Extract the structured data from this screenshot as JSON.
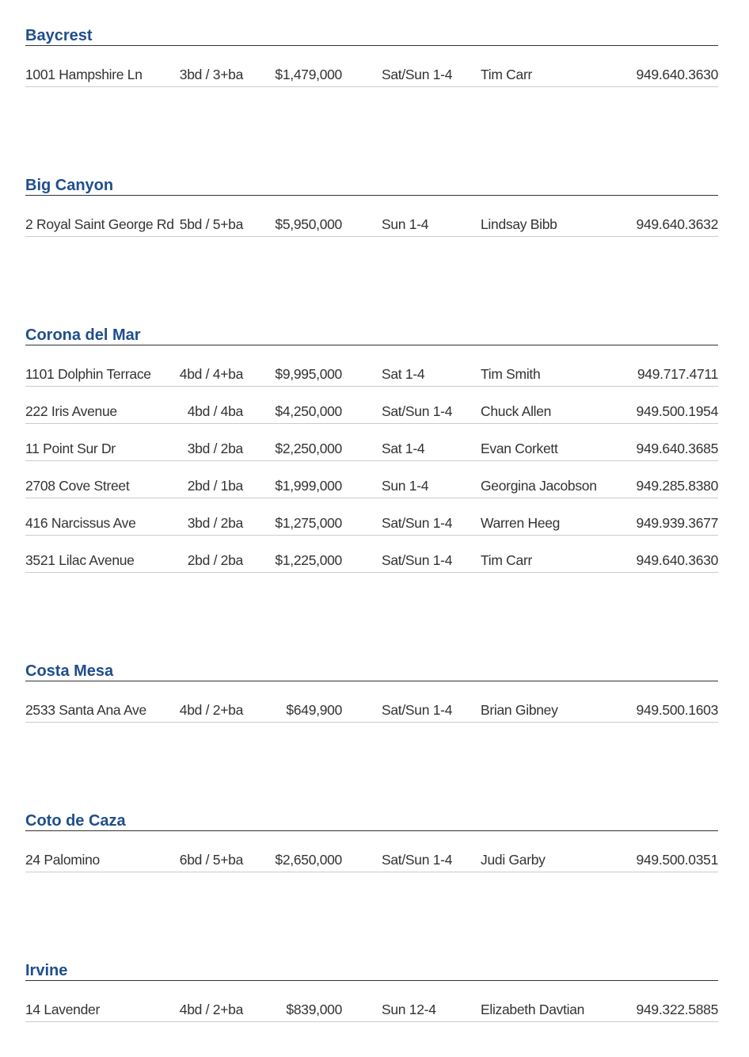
{
  "sections": [
    {
      "title": "Baycrest",
      "rows": [
        [
          "1001 Hampshire Ln",
          "3bd / 3+ba",
          "$1,479,000",
          "Sat/Sun 1-4",
          "Tim Carr",
          "949.640.3630"
        ]
      ]
    },
    {
      "title": "Big Canyon",
      "rows": [
        [
          "2 Royal Saint George Rd",
          "5bd / 5+ba",
          "$5,950,000",
          "Sun 1-4",
          "Lindsay Bibb",
          "949.640.3632"
        ]
      ]
    },
    {
      "title": "Corona del Mar",
      "rows": [
        [
          "1101 Dolphin Terrace",
          "4bd / 4+ba",
          "$9,995,000",
          "Sat 1-4",
          "Tim Smith",
          "949.717.4711"
        ],
        [
          "222 Iris Avenue",
          "4bd / 4ba",
          "$4,250,000",
          "Sat/Sun 1-4",
          "Chuck Allen",
          "949.500.1954"
        ],
        [
          "11 Point Sur Dr",
          "3bd / 2ba",
          "$2,250,000",
          "Sat 1-4",
          "Evan Corkett",
          "949.640.3685"
        ],
        [
          "2708 Cove Street",
          "2bd / 1ba",
          "$1,999,000",
          "Sun 1-4",
          "Georgina Jacobson",
          "949.285.8380"
        ],
        [
          "416 Narcissus Ave",
          "3bd / 2ba",
          "$1,275,000",
          "Sat/Sun 1-4",
          "Warren Heeg",
          "949.939.3677"
        ],
        [
          "3521 Lilac Avenue",
          "2bd / 2ba",
          "$1,225,000",
          "Sat/Sun 1-4",
          "Tim Carr",
          "949.640.3630"
        ]
      ]
    },
    {
      "title": "Costa Mesa",
      "rows": [
        [
          "2533 Santa Ana Ave",
          "4bd / 2+ba",
          "$649,900",
          "Sat/Sun 1-4",
          "Brian Gibney",
          "949.500.1603"
        ]
      ]
    },
    {
      "title": "Coto de Caza",
      "rows": [
        [
          "24 Palomino",
          "6bd / 5+ba",
          "$2,650,000",
          "Sat/Sun 1-4",
          "Judi Garby",
          "949.500.0351"
        ]
      ]
    },
    {
      "title": "Irvine",
      "rows": [
        [
          "14 Lavender",
          "4bd / 2+ba",
          "$839,000",
          "Sun 12-4",
          "Elizabeth Davtian",
          "949.322.5885"
        ]
      ]
    }
  ]
}
